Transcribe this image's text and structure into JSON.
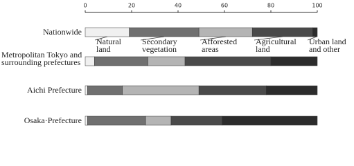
{
  "chart_data": {
    "type": "stacked-bar-horizontal",
    "categories": [
      "Nationwide",
      "Metropolitan Tokyo and surrounding prefectures",
      "Aichi Prefecture",
      "Osaka·Prefecture"
    ],
    "series": [
      {
        "name": "Natural land",
        "color": "#f0f0f0",
        "values": [
          19,
          4,
          1,
          1
        ]
      },
      {
        "name": "Secondary vegetation",
        "color": "#707070",
        "values": [
          30,
          23,
          15,
          25
        ]
      },
      {
        "name": "Afforested areas",
        "color": "#b4b4b4",
        "values": [
          23,
          16,
          33,
          11
        ]
      },
      {
        "name": "Agricultural land",
        "color": "#4a4a4a",
        "values": [
          26,
          37,
          29,
          22
        ]
      },
      {
        "name": "Urban land and other",
        "color": "#2c2c2c",
        "values": [
          2,
          20,
          22,
          41
        ]
      }
    ],
    "xlim": [
      0,
      100
    ],
    "xticks": [
      0,
      20,
      40,
      60,
      80,
      100
    ]
  }
}
